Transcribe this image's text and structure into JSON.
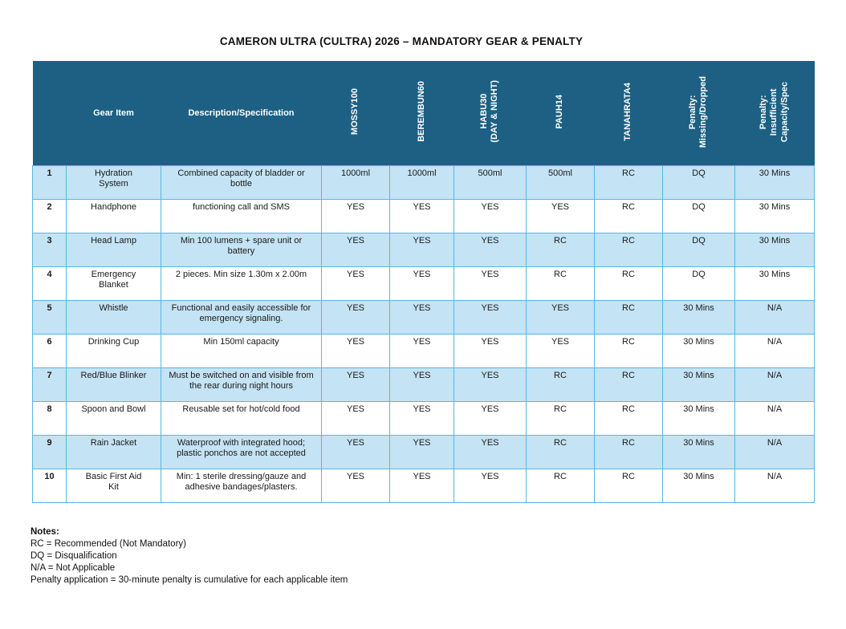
{
  "page": {
    "title": "CAMERON ULTRA (CULTRA) 2026 – MANDATORY GEAR & PENALTY"
  },
  "colors": {
    "header_bg": "#1D6083",
    "row_alt_bg": "#C4E3F4",
    "cell_border": "#57B7E2",
    "header_text": "#FFFFFF",
    "body_text": "#1A1A1A"
  },
  "table": {
    "columns": [
      {
        "label": ""
      },
      {
        "label": "Gear Item"
      },
      {
        "label": "Description/Specification"
      },
      {
        "label": "MOSSY100"
      },
      {
        "label": "BEREMBUN60"
      },
      {
        "label": "HABU30\n(DAY & NIGHT)"
      },
      {
        "label": "PAUH14"
      },
      {
        "label": "TANAHRATA4"
      },
      {
        "label": "Penalty:\nMissing/Dropped"
      },
      {
        "label": "Penalty:\nInsufficient\nCapacity/Spec"
      }
    ],
    "rows": [
      {
        "num": "1",
        "item": "Hydration System",
        "desc": "Combined capacity of bladder or bottle",
        "values": [
          "1000ml",
          "1000ml",
          "500ml",
          "500ml",
          "RC",
          "DQ",
          "30 Mins"
        ]
      },
      {
        "num": "2",
        "item": "Handphone",
        "desc": "functioning call and SMS",
        "values": [
          "YES",
          "YES",
          "YES",
          "YES",
          "RC",
          "DQ",
          "30 Mins"
        ]
      },
      {
        "num": "3",
        "item": "Head Lamp",
        "desc": "Min 100 lumens + spare unit or battery",
        "values": [
          "YES",
          "YES",
          "YES",
          "RC",
          "RC",
          "DQ",
          "30 Mins"
        ]
      },
      {
        "num": "4",
        "item": "Emergency Blanket",
        "desc": "2 pieces. Min size 1.30m x 2.00m",
        "values": [
          "YES",
          "YES",
          "YES",
          "RC",
          "RC",
          "DQ",
          "30 Mins"
        ]
      },
      {
        "num": "5",
        "item": "Whistle",
        "desc": "Functional and easily accessible for emergency signaling.",
        "values": [
          "YES",
          "YES",
          "YES",
          "YES",
          "RC",
          "30 Mins",
          "N/A"
        ]
      },
      {
        "num": "6",
        "item": "Drinking Cup",
        "desc": "Min 150ml capacity",
        "values": [
          "YES",
          "YES",
          "YES",
          "YES",
          "RC",
          "30 Mins",
          "N/A"
        ]
      },
      {
        "num": "7",
        "item": "Red/Blue Blinker",
        "desc": "Must be switched on and visible from the rear during night hours",
        "values": [
          "YES",
          "YES",
          "YES",
          "RC",
          "RC",
          "30 Mins",
          "N/A"
        ]
      },
      {
        "num": "8",
        "item": "Spoon and Bowl",
        "desc": "Reusable set for hot/cold food",
        "values": [
          "YES",
          "YES",
          "YES",
          "RC",
          "RC",
          "30 Mins",
          "N/A"
        ]
      },
      {
        "num": "9",
        "item": "Rain Jacket",
        "desc": "Waterproof with integrated hood; plastic ponchos are not accepted",
        "values": [
          "YES",
          "YES",
          "YES",
          "RC",
          "RC",
          "30 Mins",
          "N/A"
        ]
      },
      {
        "num": "10",
        "item": "Basic First Aid Kit",
        "desc": "Min: 1 sterile dressing/gauze and adhesive bandages/plasters.",
        "values": [
          "YES",
          "YES",
          "YES",
          "RC",
          "RC",
          "30 Mins",
          "N/A"
        ]
      }
    ]
  },
  "notes": {
    "heading": "Notes:",
    "lines": [
      "RC = Recommended (Not Mandatory)",
      "DQ = Disqualification",
      "N/A = Not Applicable",
      "Penalty application = 30-minute penalty is cumulative for each applicable item"
    ]
  }
}
